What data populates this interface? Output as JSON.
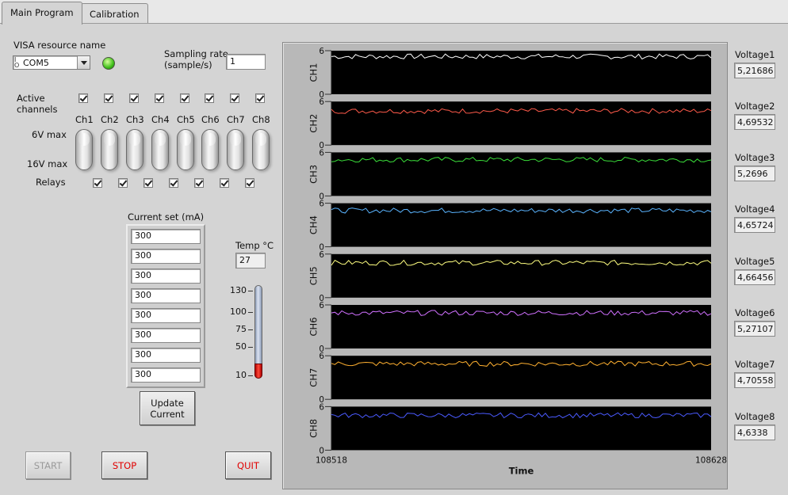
{
  "tabs": [
    {
      "label": "Main Program"
    },
    {
      "label": "Calibration"
    }
  ],
  "visa": {
    "label": "VISA resource name",
    "value": "COM5",
    "prefix": "I/O"
  },
  "sampling": {
    "label_line1": "Sampling rate",
    "label_line2": "(sample/s)",
    "value": "1"
  },
  "active_channels": {
    "label_line1": "Active",
    "label_line2": "channels",
    "checked": [
      true,
      true,
      true,
      true,
      true,
      true,
      true,
      true
    ]
  },
  "channels": [
    "Ch1",
    "Ch2",
    "Ch3",
    "Ch4",
    "Ch5",
    "Ch6",
    "Ch7",
    "Ch8"
  ],
  "range_labels": {
    "top": "6V max",
    "bottom": "16V max"
  },
  "relays": {
    "label": "Relays",
    "checked": [
      true,
      true,
      true,
      true,
      true,
      true,
      true
    ]
  },
  "current_set": {
    "label": "Current set (mA)",
    "values": [
      "300",
      "300",
      "300",
      "300",
      "300",
      "300",
      "300",
      "300"
    ]
  },
  "update_button": {
    "line1": "Update",
    "line2": "Current"
  },
  "temp": {
    "label": "Temp °C",
    "value": "27",
    "scale": [
      "130",
      "100",
      "75",
      "50",
      "10"
    ],
    "level": 27,
    "min": 10,
    "max": 130
  },
  "buttons": {
    "start": "START",
    "stop": "STOP",
    "quit": "QUIT"
  },
  "voltages": [
    {
      "label": "Voltage1",
      "value": "5,21686"
    },
    {
      "label": "Voltage2",
      "value": "4,69532"
    },
    {
      "label": "Voltage3",
      "value": "5,2696"
    },
    {
      "label": "Voltage4",
      "value": "4,65724"
    },
    {
      "label": "Voltage5",
      "value": "4,66456"
    },
    {
      "label": "Voltage6",
      "value": "5,27107"
    },
    {
      "label": "Voltage7",
      "value": "4,70558"
    },
    {
      "label": "Voltage8",
      "value": "4,6338"
    }
  ],
  "chart_data": {
    "type": "line",
    "xlabel": "Time",
    "xlim": [
      108518,
      108628
    ],
    "x_tick_labels": [
      "108518",
      "108628"
    ],
    "ylim": [
      0,
      6
    ],
    "y_tick_labels": [
      "0",
      "6"
    ],
    "grid": false,
    "series": [
      {
        "name": "CH1",
        "color": "#ffffff",
        "mean": 5.2
      },
      {
        "name": "CH2",
        "color": "#ff5a4a",
        "mean": 4.7
      },
      {
        "name": "CH3",
        "color": "#3adf3a",
        "mean": 5.0
      },
      {
        "name": "CH4",
        "color": "#5ab4ff",
        "mean": 5.0
      },
      {
        "name": "CH5",
        "color": "#ffff80",
        "mean": 4.8
      },
      {
        "name": "CH6",
        "color": "#d070ff",
        "mean": 4.9
      },
      {
        "name": "CH7",
        "color": "#ffb030",
        "mean": 4.9
      },
      {
        "name": "CH8",
        "color": "#4a5aff",
        "mean": 4.8
      }
    ]
  }
}
